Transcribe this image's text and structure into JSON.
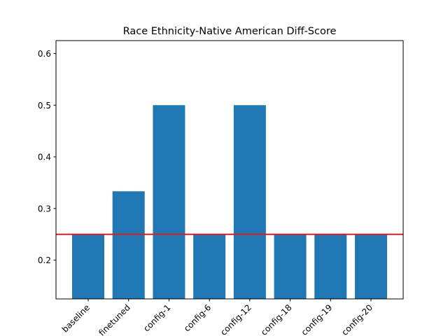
{
  "chart_data": {
    "type": "bar",
    "title": "Race Ethnicity-Native American Diff-Score",
    "xlabel": "",
    "ylabel": "",
    "categories": [
      "baseline",
      "finetuned",
      "config-1",
      "config-6",
      "config-12",
      "config-18",
      "config-19",
      "config-20"
    ],
    "values": [
      0.25,
      0.3333,
      0.5,
      0.25,
      0.5,
      0.25,
      0.25,
      0.25
    ],
    "ylim": [
      0.125,
      0.625
    ],
    "yticks": [
      0.2,
      0.3,
      0.4,
      0.5,
      0.6
    ],
    "yticklabels": [
      "0.2",
      "0.3",
      "0.4",
      "0.5",
      "0.6"
    ],
    "reference_line": {
      "y": 0.25,
      "color": "#e41a1c"
    },
    "bar_color": "#1f77b4",
    "grid": false,
    "legend": "none"
  }
}
